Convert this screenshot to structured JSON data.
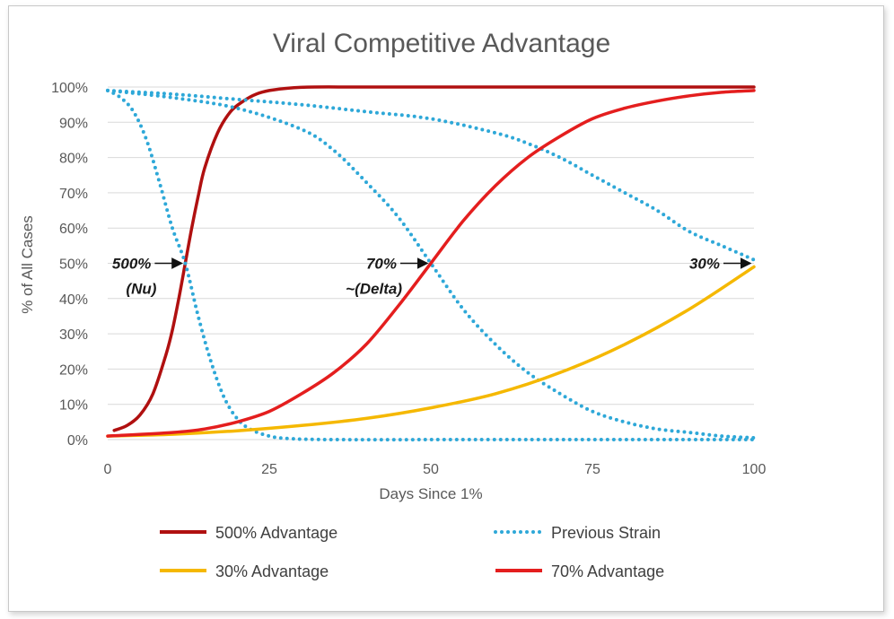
{
  "chart_data": {
    "type": "line",
    "title": "Viral Competitive Advantage",
    "xlabel": "Days Since 1%",
    "ylabel": "% of All Cases",
    "xlim": [
      0,
      100
    ],
    "ylim": [
      0,
      100
    ],
    "x_ticks": [
      "0",
      "25",
      "50",
      "75",
      "100"
    ],
    "y_ticks": [
      "0%",
      "10%",
      "20%",
      "30%",
      "40%",
      "50%",
      "60%",
      "70%",
      "80%",
      "90%",
      "100%"
    ],
    "grid": "horizontal",
    "legend_position": "bottom",
    "series": [
      {
        "name": "500% Advantage",
        "color": "#b01010",
        "style": "solid",
        "points": [
          [
            1,
            2.6
          ],
          [
            3,
            4
          ],
          [
            5,
            7
          ],
          [
            7,
            13
          ],
          [
            9,
            24
          ],
          [
            10,
            31
          ],
          [
            11,
            40
          ],
          [
            12,
            50
          ],
          [
            13,
            60
          ],
          [
            14,
            69
          ],
          [
            15,
            77
          ],
          [
            17,
            87
          ],
          [
            19,
            93
          ],
          [
            21,
            96
          ],
          [
            23,
            98
          ],
          [
            25,
            99
          ],
          [
            28,
            99.7
          ],
          [
            32,
            100
          ],
          [
            40,
            100
          ],
          [
            60,
            100
          ],
          [
            80,
            100
          ],
          [
            100,
            100
          ]
        ]
      },
      {
        "name": "Previous Strain",
        "color": "#2ea8d8",
        "style": "dotted",
        "points": [
          [
            0,
            99
          ],
          [
            2,
            97
          ],
          [
            4,
            93
          ],
          [
            6,
            85
          ],
          [
            8,
            73
          ],
          [
            10,
            60
          ],
          [
            12,
            50
          ],
          [
            14,
            35
          ],
          [
            16,
            22
          ],
          [
            18,
            12
          ],
          [
            20,
            6
          ],
          [
            22,
            3
          ],
          [
            25,
            1
          ],
          [
            28,
            0.3
          ],
          [
            35,
            0
          ],
          [
            60,
            0
          ],
          [
            100,
            0
          ]
        ]
      },
      {
        "name": "Previous Strain",
        "color": "#2ea8d8",
        "style": "dotted",
        "points": [
          [
            0,
            99
          ],
          [
            10,
            97
          ],
          [
            20,
            94
          ],
          [
            30,
            88
          ],
          [
            35,
            82
          ],
          [
            40,
            73
          ],
          [
            45,
            63
          ],
          [
            50,
            50
          ],
          [
            55,
            37
          ],
          [
            60,
            27
          ],
          [
            65,
            19
          ],
          [
            70,
            13
          ],
          [
            75,
            8
          ],
          [
            80,
            5
          ],
          [
            85,
            3
          ],
          [
            90,
            2
          ],
          [
            95,
            1
          ],
          [
            100,
            0.5
          ]
        ]
      },
      {
        "name": "Previous Strain",
        "color": "#2ea8d8",
        "style": "dotted",
        "points": [
          [
            0,
            99
          ],
          [
            10,
            98
          ],
          [
            20,
            96.5
          ],
          [
            30,
            95
          ],
          [
            40,
            93
          ],
          [
            50,
            91
          ],
          [
            60,
            87
          ],
          [
            65,
            84
          ],
          [
            70,
            80
          ],
          [
            75,
            75
          ],
          [
            80,
            70
          ],
          [
            85,
            65
          ],
          [
            90,
            59
          ],
          [
            95,
            55
          ],
          [
            100,
            51
          ]
        ]
      },
      {
        "name": "30% Advantage",
        "color": "#f5b800",
        "style": "solid",
        "points": [
          [
            0,
            1
          ],
          [
            10,
            1.5
          ],
          [
            20,
            2.5
          ],
          [
            30,
            4
          ],
          [
            40,
            6
          ],
          [
            50,
            9
          ],
          [
            60,
            13
          ],
          [
            70,
            19
          ],
          [
            80,
            27
          ],
          [
            90,
            37
          ],
          [
            100,
            49
          ]
        ]
      },
      {
        "name": "70% Advantage",
        "color": "#e41e1e",
        "style": "solid",
        "points": [
          [
            0,
            1
          ],
          [
            10,
            2
          ],
          [
            15,
            3
          ],
          [
            20,
            5
          ],
          [
            25,
            8
          ],
          [
            30,
            13
          ],
          [
            35,
            19
          ],
          [
            40,
            27
          ],
          [
            45,
            38
          ],
          [
            50,
            50
          ],
          [
            55,
            62
          ],
          [
            60,
            72
          ],
          [
            65,
            80
          ],
          [
            70,
            86
          ],
          [
            75,
            91
          ],
          [
            80,
            94
          ],
          [
            85,
            96
          ],
          [
            90,
            97.5
          ],
          [
            95,
            98.5
          ],
          [
            100,
            99
          ]
        ]
      }
    ],
    "annotations": [
      {
        "text": "500%",
        "line2": "(Nu)",
        "x": 12,
        "y": 50
      },
      {
        "text": "70%",
        "line2": "~(Delta)",
        "x": 50,
        "y": 50
      },
      {
        "text": "30%",
        "line2": "",
        "x": 100,
        "y": 50
      }
    ],
    "legend": [
      {
        "label": "500% Advantage",
        "color": "#b01010",
        "style": "solid"
      },
      {
        "label": "Previous Strain",
        "color": "#2ea8d8",
        "style": "dotted"
      },
      {
        "label": "30% Advantage",
        "color": "#f5b800",
        "style": "solid"
      },
      {
        "label": "70% Advantage",
        "color": "#e41e1e",
        "style": "solid"
      }
    ]
  }
}
